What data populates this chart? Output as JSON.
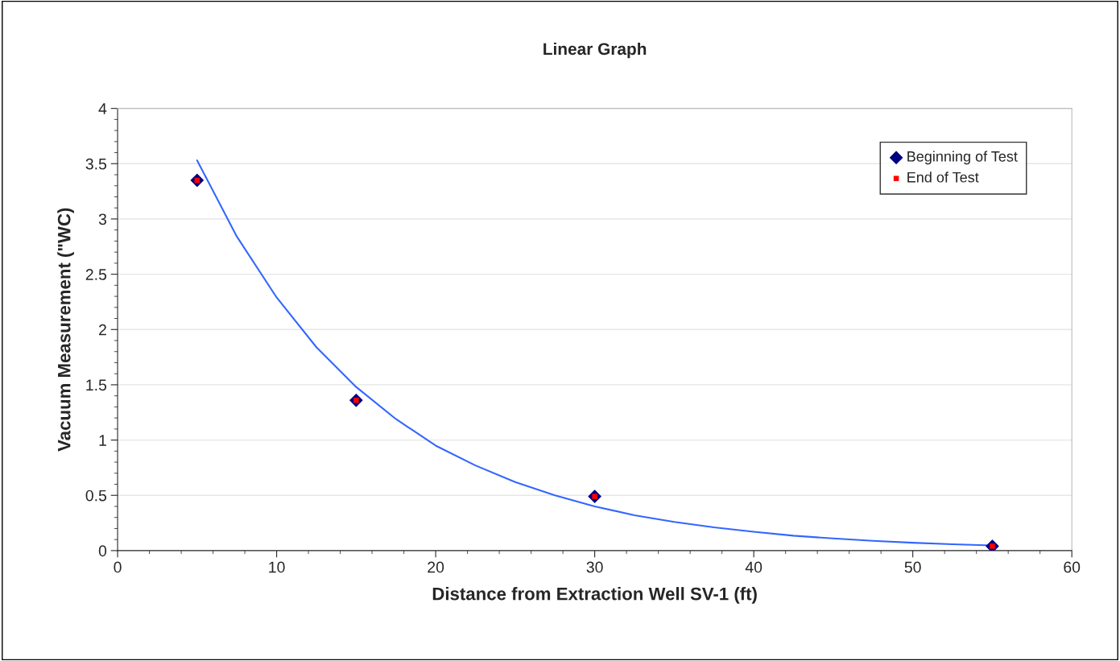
{
  "chart_data": {
    "type": "scatter",
    "title": "Linear Graph",
    "xlabel": "Distance from Extraction Well SV-1 (ft)",
    "ylabel": "Vacuum Measurement (\"WC)",
    "xlim": [
      0,
      60
    ],
    "xticks": [
      0,
      10,
      20,
      30,
      40,
      50,
      60
    ],
    "ylim": [
      0,
      4
    ],
    "yticks": [
      0,
      0.5,
      1,
      1.5,
      2,
      2.5,
      3,
      3.5,
      4
    ],
    "grid": "y",
    "legend": "top right",
    "series": [
      {
        "name": "Beginning of Test",
        "marker": "diamond",
        "color": "#000080",
        "x": [
          5,
          15,
          30,
          55
        ],
        "values": [
          3.35,
          1.36,
          0.49,
          0.04
        ]
      },
      {
        "name": "End of Test",
        "marker": "square",
        "color": "#ff0000",
        "x": [
          5,
          15,
          30,
          55
        ],
        "values": [
          3.35,
          1.36,
          0.49,
          0.04
        ]
      },
      {
        "type": "line",
        "marker": "none",
        "line_style": "solid",
        "color": "#3366ff",
        "x": [
          5,
          7.5,
          10,
          12.5,
          15,
          17.5,
          20,
          22.5,
          25,
          27.5,
          30,
          32.5,
          35,
          37.5,
          40,
          42.5,
          45,
          47.5,
          50,
          52.5,
          55
        ],
        "values": [
          3.53,
          2.84,
          2.29,
          1.84,
          1.48,
          1.19,
          0.95,
          0.77,
          0.62,
          0.5,
          0.4,
          0.32,
          0.26,
          0.21,
          0.17,
          0.135,
          0.11,
          0.088,
          0.071,
          0.057,
          0.046
        ]
      }
    ]
  }
}
